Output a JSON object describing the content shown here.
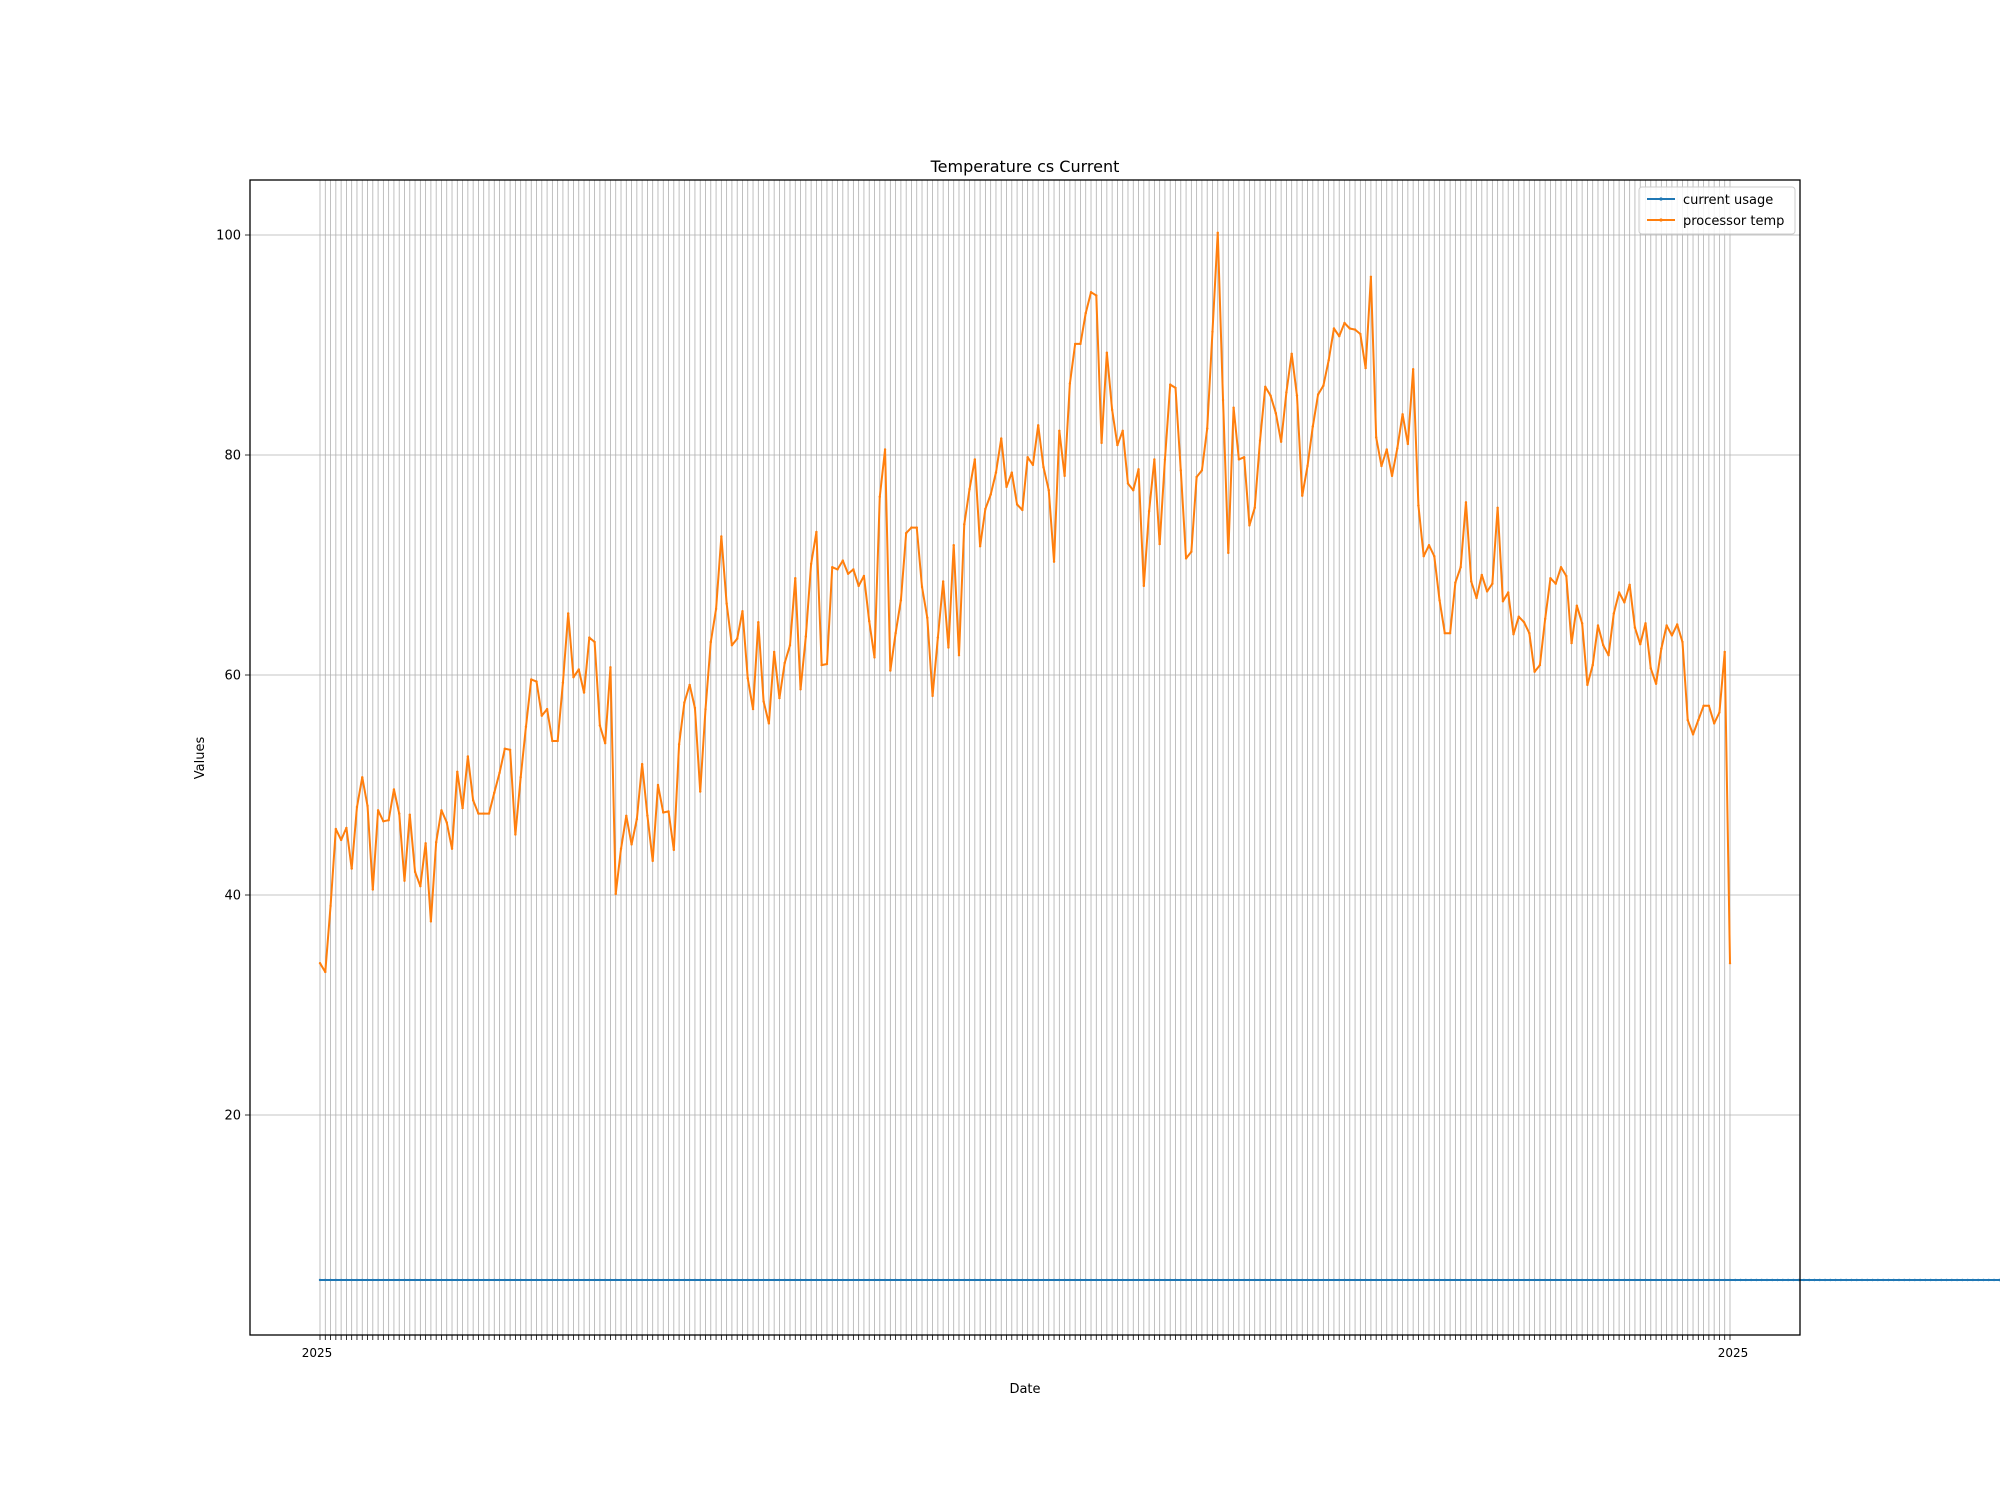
{
  "chart_data": {
    "type": "line",
    "title": "Temperature cs Current",
    "xlabel": "Date",
    "ylabel": "Values",
    "ylim": [
      0,
      105
    ],
    "yticks": [
      20,
      40,
      60,
      80,
      100
    ],
    "grid": true,
    "legend_position": "top-right",
    "x_tick_labels_overlapping": true,
    "x_tick_label_left_visible": "2025",
    "x_tick_label_right_visible": "2025",
    "series": [
      {
        "name": "current usage",
        "color": "#1f77b4",
        "values": [
          5,
          5,
          5,
          5,
          5,
          5,
          5,
          5,
          5,
          5,
          5,
          5,
          5,
          5,
          5,
          5,
          5,
          5,
          5,
          5,
          5,
          5,
          5,
          5,
          5,
          5,
          5,
          5,
          5,
          5,
          5,
          5,
          5,
          5,
          5,
          5,
          5,
          5,
          5,
          5,
          5,
          5,
          5,
          5,
          5,
          5,
          5,
          5,
          5,
          5,
          5,
          5,
          5,
          5,
          5,
          5,
          5,
          5,
          5,
          5,
          5,
          5,
          5,
          5,
          5,
          5,
          5,
          5,
          5,
          5,
          5,
          5,
          5,
          5,
          5,
          5,
          5,
          5,
          5,
          5,
          5,
          5,
          5,
          5,
          5,
          5,
          5,
          5,
          5,
          5,
          5,
          5,
          5,
          5,
          5,
          5,
          5,
          5,
          5,
          5,
          5,
          5,
          5,
          5,
          5,
          5,
          5,
          5,
          5,
          5,
          5,
          5,
          5,
          5,
          5,
          5,
          5,
          5,
          5,
          5,
          5,
          5,
          5,
          5,
          5,
          5,
          5,
          5,
          5,
          5,
          5,
          5,
          5,
          5,
          5,
          5,
          5,
          5,
          5,
          5,
          5,
          5,
          5,
          5,
          5,
          5,
          5,
          5,
          5,
          5,
          5,
          5,
          5,
          5,
          5,
          5,
          5,
          5,
          5,
          5,
          5,
          5,
          5,
          5,
          5,
          5,
          5,
          5,
          5,
          5,
          5,
          5,
          5,
          5,
          5,
          5,
          5,
          5,
          5,
          5,
          5,
          5,
          5,
          5,
          5,
          5,
          5,
          5,
          5,
          5,
          5,
          5,
          5,
          5,
          5,
          5,
          5,
          5,
          5,
          5,
          5,
          5,
          5,
          5,
          5,
          5,
          5,
          5,
          5,
          5,
          5,
          5,
          5,
          5,
          5,
          5,
          5,
          5,
          5,
          5,
          5,
          5,
          5,
          5,
          5,
          5,
          5,
          5,
          5,
          5,
          5,
          5,
          5,
          5,
          5,
          5,
          5,
          5,
          5,
          5,
          5,
          5,
          5,
          5,
          5,
          5,
          5,
          5,
          5,
          5,
          5,
          5,
          5,
          5,
          5,
          5,
          5,
          5,
          5,
          5,
          5,
          5,
          5,
          5,
          5,
          5,
          5,
          5,
          5,
          5,
          5,
          5,
          5,
          5,
          5,
          5,
          5,
          5,
          5,
          5,
          5,
          5,
          5,
          5,
          5,
          5,
          5,
          5,
          5,
          5,
          5,
          5,
          5,
          5,
          5,
          5,
          5,
          5,
          5,
          5,
          5,
          5,
          5,
          5,
          5,
          5,
          5,
          5,
          5,
          5,
          5,
          5,
          5,
          5,
          5,
          5,
          5,
          5,
          5,
          5
        ]
      },
      {
        "name": "processor temp",
        "color": "#ff7f0e",
        "values": [
          33.8,
          33,
          39,
          46,
          45,
          46.1,
          42.4,
          48,
          50.7,
          48.1,
          40.5,
          47.7,
          46.7,
          46.8,
          49.6,
          47.4,
          41.3,
          47.3,
          42.1,
          40.8,
          44.7,
          37.6,
          44.8,
          47.7,
          46.6,
          44.2,
          51.2,
          47.9,
          52.6,
          48.6,
          47.4,
          47.4,
          47.4,
          49.3,
          51.1,
          53.3,
          53.2,
          45.5,
          50.7,
          55.3,
          59.6,
          59.4,
          56.3,
          56.9,
          54,
          54,
          59.3,
          65.6,
          59.8,
          60.5,
          58.4,
          63.4,
          63,
          55.4,
          53.8,
          60.7,
          40.1,
          44.2,
          47.2,
          44.6,
          46.9,
          51.9,
          47.2,
          43.1,
          50,
          47.5,
          47.6,
          44.1,
          53.7,
          57.5,
          59.1,
          57,
          49.4,
          56.9,
          63,
          66,
          72.6,
          66.5,
          62.7,
          63.3,
          65.8,
          59.7,
          56.9,
          64.8,
          57.6,
          55.6,
          62.1,
          57.9,
          61.1,
          62.7,
          68.8,
          58.7,
          63.5,
          70.1,
          73,
          60.9,
          61,
          69.8,
          69.6,
          70.4,
          69.2,
          69.6,
          68.1,
          69,
          64.9,
          61.6,
          76.2,
          80.5,
          60.4,
          63.8,
          66.8,
          72.9,
          73.4,
          73.4,
          68,
          65.2,
          58.1,
          63.4,
          68.5,
          62.5,
          71.8,
          61.8,
          73.7,
          76.9,
          79.6,
          71.7,
          75.1,
          76.4,
          78.4,
          81.5,
          77.1,
          78.4,
          75.5,
          75,
          79.8,
          79.1,
          82.7,
          78.9,
          76.8,
          70.3,
          82.2,
          78.1,
          86.5,
          90.1,
          90.1,
          92.9,
          94.8,
          94.5,
          81.1,
          89.3,
          84.1,
          80.9,
          82.2,
          77.4,
          76.8,
          78.7,
          68.1,
          74.9,
          79.6,
          71.9,
          79.6,
          86.4,
          86.1,
          78.6,
          70.6,
          71.2,
          78,
          78.6,
          82.4,
          91.2,
          100.2,
          85,
          71.1,
          84.3,
          79.6,
          79.8,
          73.6,
          75.2,
          81.3,
          86.2,
          85.4,
          83.8,
          81.2,
          85.7,
          89.2,
          85.4,
          76.3,
          79,
          82.6,
          85.5,
          86.3,
          88.6,
          91.5,
          90.8,
          92,
          91.5,
          91.4,
          91,
          87.9,
          96.2,
          81.6,
          79,
          80.5,
          78.1,
          80.6,
          83.7,
          81,
          87.8,
          75.4,
          70.8,
          71.8,
          70.8,
          66.8,
          63.8,
          63.8,
          68.4,
          69.8,
          75.7,
          68.5,
          67,
          69.1,
          67.6,
          68.3,
          75.2,
          66.7,
          67.5,
          63.7,
          65.3,
          64.8,
          63.8,
          60.3,
          60.9,
          65.1,
          68.8,
          68.3,
          69.8,
          69,
          62.9,
          66.3,
          64.7,
          59.1,
          60.9,
          64.5,
          62.7,
          61.8,
          65.6,
          67.5,
          66.6,
          68.2,
          64.3,
          62.8,
          64.7,
          60.6,
          59.2,
          62.4,
          64.5,
          63.6,
          64.6,
          63,
          55.9,
          54.6,
          55.9,
          57.2,
          57.2,
          55.6,
          56.6,
          62.1,
          33.8
        ]
      }
    ]
  }
}
